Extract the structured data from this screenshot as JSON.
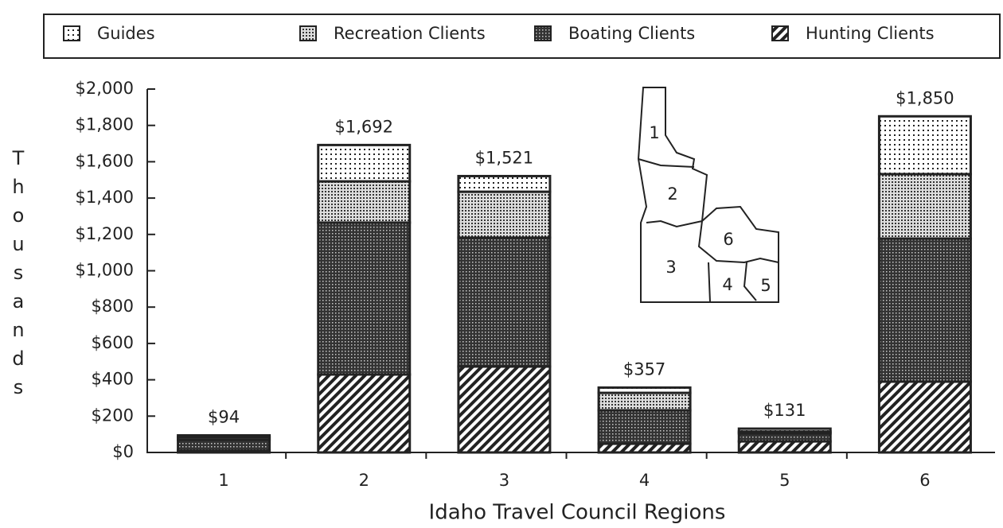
{
  "chart_data": {
    "type": "stacked_bar",
    "x_label": "Idaho Travel Council Regions",
    "y_label": "Thousands",
    "categories": [
      "1",
      "2",
      "3",
      "4",
      "5",
      "6"
    ],
    "series": [
      {
        "name": "Hunting Clients",
        "color": "#222222",
        "pattern": "hatch",
        "values": [
          10,
          429,
          473,
          48,
          61,
          390
        ]
      },
      {
        "name": "Boating Clients",
        "color": "#222222",
        "pattern": "dark-dots",
        "values": [
          60,
          836,
          709,
          184,
          44,
          787
        ]
      },
      {
        "name": "Recreation Clients",
        "color": "#222222",
        "pattern": "mid-dots",
        "values": [
          14,
          227,
          253,
          96,
          10,
          355
        ]
      },
      {
        "name": "Guides",
        "color": "#222222",
        "pattern": "light-dots",
        "values": [
          10,
          200,
          86,
          29,
          16,
          318
        ]
      }
    ],
    "legend_order": [
      3,
      2,
      1,
      0
    ],
    "totals": [
      {
        "value": 94,
        "label": "$94"
      },
      {
        "value": 1692,
        "label": "$1,692"
      },
      {
        "value": 1521,
        "label": "$1,521"
      },
      {
        "value": 357,
        "label": "$357"
      },
      {
        "value": 131,
        "label": "$131"
      },
      {
        "value": 1850,
        "label": "$1,850"
      }
    ],
    "ylim": [
      0,
      2000
    ],
    "yticks": [
      {
        "value": 0,
        "label": "$0"
      },
      {
        "value": 200,
        "label": "$200"
      },
      {
        "value": 400,
        "label": "$400"
      },
      {
        "value": 600,
        "label": "$600"
      },
      {
        "value": 800,
        "label": "$800"
      },
      {
        "value": 1000,
        "label": "$1,000"
      },
      {
        "value": 1200,
        "label": "$1,200"
      },
      {
        "value": 1400,
        "label": "$1,400"
      },
      {
        "value": 1600,
        "label": "$1,600"
      },
      {
        "value": 1800,
        "label": "$1,800"
      },
      {
        "value": 2000,
        "label": "$2,000"
      }
    ],
    "map_labels": [
      "1",
      "2",
      "3",
      "4",
      "5",
      "6"
    ]
  }
}
